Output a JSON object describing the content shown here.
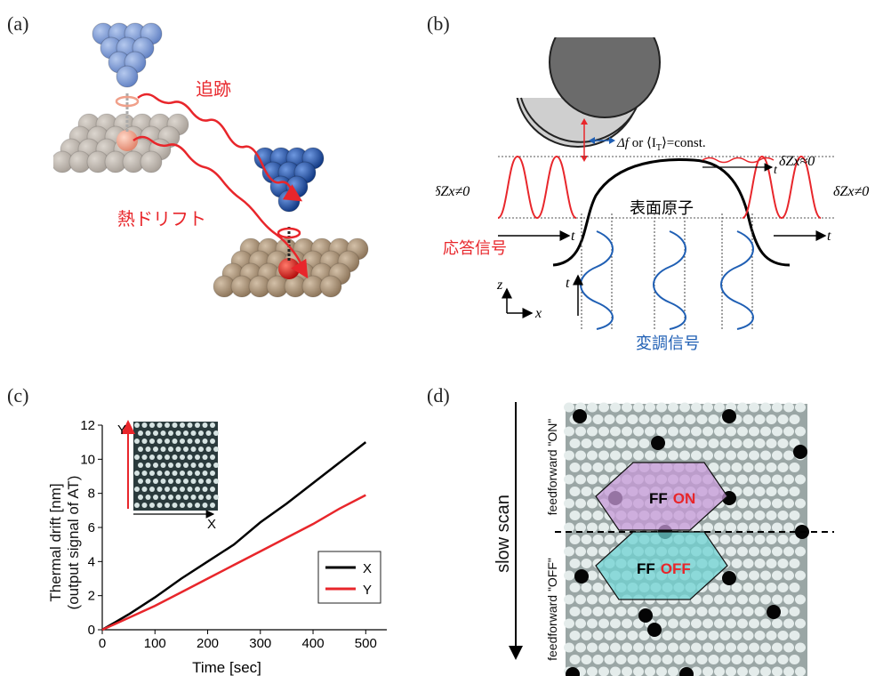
{
  "panel_a": {
    "label": "(a)",
    "tracking": "追跡",
    "thermal_drift": "熱ドリフト"
  },
  "panel_b": {
    "label": "(b)",
    "const_df": "Δf",
    "const_or": " or ⟨I",
    "const_sub": "T",
    "const_tail": "⟩=const.",
    "dz_approx": "δZx≈0",
    "dz_left": "δZx≠0",
    "dz_right": "δZx≠0",
    "surface_atom": "表面原子",
    "response_signal": "応答信号",
    "modulation_signal": "変調信号",
    "t": "t",
    "z": "z",
    "x": "x"
  },
  "panel_c": {
    "label": "(c)",
    "ylabel_1": "Thermal drift [nm]",
    "ylabel_2": "(output signal of AT)",
    "inset_x": "X",
    "inset_y": "Y"
  },
  "panel_d": {
    "label": "(d)",
    "slow_scan": "slow scan",
    "ff_on_top": "feedforward \"ON\"",
    "ff_off_bottom": "feedforward \"OFF\"",
    "ff": "FF",
    "on": "ON",
    "off": "OFF"
  },
  "colors": {
    "red": "#e8262b",
    "blue": "#1f5fb4",
    "black": "#000000",
    "on_red": "#e8262b",
    "purple": "#c79ad8",
    "cyan": "#6fd3d3"
  },
  "chart_data": {
    "type": "line",
    "title": "",
    "xlabel": "Time [sec]",
    "ylabel": "Thermal drift [nm] (output signal of AT)",
    "xlim": [
      0,
      540
    ],
    "ylim": [
      0,
      12
    ],
    "x_ticks": [
      0,
      100,
      200,
      300,
      400,
      500
    ],
    "y_ticks": [
      0,
      2,
      4,
      6,
      8,
      10,
      12
    ],
    "legend_position": "bottom-right",
    "series": [
      {
        "name": "X",
        "color": "#000000",
        "x": [
          0,
          50,
          100,
          150,
          200,
          250,
          300,
          350,
          400,
          450,
          500
        ],
        "y": [
          0,
          0.9,
          1.9,
          3.0,
          4.0,
          5.0,
          6.3,
          7.4,
          8.6,
          9.8,
          11.0
        ]
      },
      {
        "name": "Y",
        "color": "#e8262b",
        "x": [
          0,
          50,
          100,
          150,
          200,
          250,
          300,
          350,
          400,
          450,
          500
        ],
        "y": [
          0,
          0.7,
          1.4,
          2.2,
          3.0,
          3.8,
          4.6,
          5.4,
          6.2,
          7.1,
          7.9
        ]
      }
    ]
  }
}
